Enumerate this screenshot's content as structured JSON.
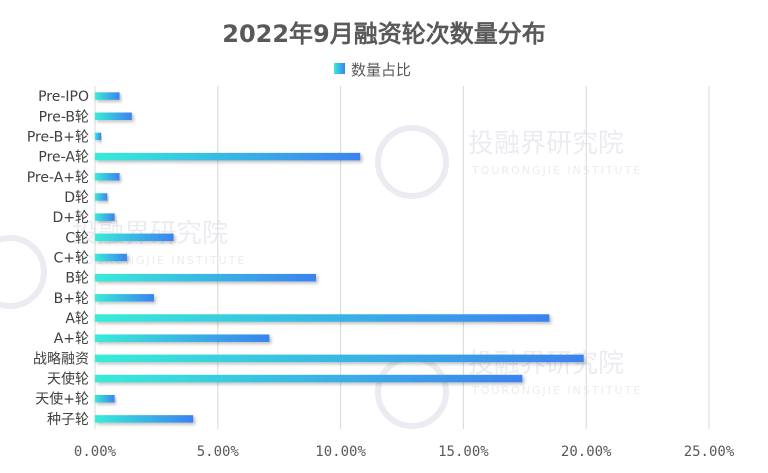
{
  "chart_data": {
    "type": "bar",
    "orientation": "horizontal",
    "title": "2022年9月融资轮次数量分布",
    "legend": {
      "label": "数量占比",
      "position": "top"
    },
    "categories": [
      "Pre-IPO",
      "Pre-B轮",
      "Pre-B+轮",
      "Pre-A轮",
      "Pre-A+轮",
      "D轮",
      "D+轮",
      "C轮",
      "C+轮",
      "B轮",
      "B+轮",
      "A轮",
      "A+轮",
      "战略融资",
      "天使轮",
      "天使+轮",
      "种子轮"
    ],
    "values": [
      1.0,
      1.5,
      0.25,
      10.8,
      1.0,
      0.5,
      0.8,
      3.2,
      1.3,
      9.0,
      2.4,
      18.5,
      7.1,
      19.9,
      17.4,
      0.8,
      4.0
    ],
    "xlim": [
      0,
      25
    ],
    "xticks": [
      "0.00%",
      "5.00%",
      "10.00%",
      "15.00%",
      "20.00%",
      "25.00%"
    ],
    "grid": true,
    "colors": {
      "gradient_start": "#37ecd8",
      "gradient_end": "#3b82f0"
    }
  },
  "watermark": {
    "text": "投融界研究院",
    "subtext": "TOURONGJIE INSTITUTE"
  }
}
